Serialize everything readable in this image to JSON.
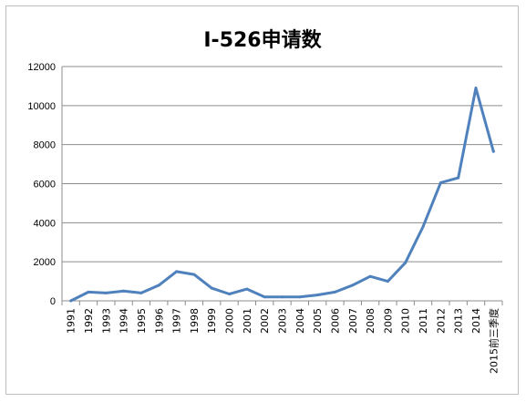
{
  "chart_data": {
    "type": "line",
    "title": "I-526申请数",
    "xlabel": "",
    "ylabel": "",
    "categories": [
      "1991",
      "1992",
      "1993",
      "1994",
      "1995",
      "1996",
      "1997",
      "1998",
      "1999",
      "2000",
      "2001",
      "2002",
      "2003",
      "2004",
      "2005",
      "2006",
      "2007",
      "2008",
      "2009",
      "2010",
      "2011",
      "2012",
      "2013",
      "2014",
      "2015前三季度"
    ],
    "series": [
      {
        "values": [
          0,
          450,
          400,
          500,
          400,
          800,
          1500,
          1350,
          650,
          350,
          600,
          200,
          200,
          200,
          300,
          450,
          800,
          1250,
          1000,
          1950,
          3800,
          6050,
          6300,
          10900,
          7650
        ],
        "color": "#4f81bd"
      }
    ],
    "ylim": [
      0,
      12000
    ],
    "yticks": [
      0,
      2000,
      4000,
      6000,
      8000,
      10000,
      12000
    ],
    "grid": true,
    "legend": "none"
  }
}
